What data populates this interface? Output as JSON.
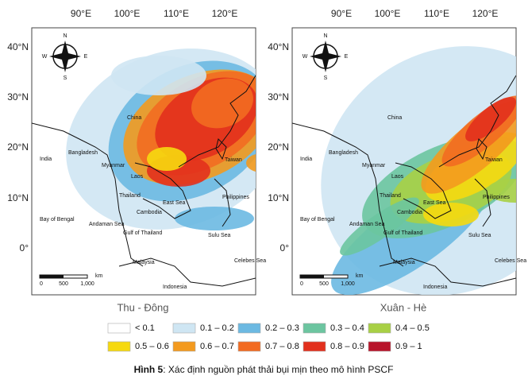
{
  "maps": [
    {
      "caption": "Thu - Đông",
      "lon_labels": [
        "90°E",
        "100°E",
        "110°E",
        "120°E"
      ],
      "lat_labels": [
        "40°N",
        "30°N",
        "20°N",
        "10°N",
        "0°"
      ],
      "compass": [
        "N",
        "S",
        "E",
        "W"
      ],
      "scale": [
        "0",
        "500",
        "1,000",
        "km"
      ],
      "places": [
        "China",
        "India",
        "Bangladesh",
        "Myanmar",
        "Laos",
        "Thailand",
        "Cambodia",
        "Bay of Bengal",
        "Andaman Sea",
        "Gulf of Thailand",
        "East Sea",
        "Philippines",
        "Sulu Sea",
        "Celebes Sea",
        "Malaysia",
        "Indonesia",
        "Taiwan"
      ]
    },
    {
      "caption": "Xuân - Hè",
      "lon_labels": [
        "90°E",
        "100°E",
        "110°E",
        "120°E"
      ],
      "lat_labels": [
        "40°N",
        "30°N",
        "20°N",
        "10°N",
        "0°"
      ],
      "compass": [
        "N",
        "S",
        "E",
        "W"
      ],
      "scale": [
        "0",
        "500",
        "1,000",
        "km"
      ],
      "places": [
        "China",
        "India",
        "Bangladesh",
        "Myanmar",
        "Laos",
        "Thailand",
        "Cambodia",
        "Bay of Bengal",
        "Andaman Sea",
        "Gulf of Thailand",
        "East Sea",
        "Philippines",
        "Sulu Sea",
        "Celebes Sea",
        "Malaysia",
        "Indonesia",
        "Taiwan"
      ]
    }
  ],
  "legend": [
    {
      "label": "< 0.1",
      "color": "#ffffff"
    },
    {
      "label": "0.1 – 0.2",
      "color": "#cfe6f3"
    },
    {
      "label": "0.2 – 0.3",
      "color": "#6cb9e2"
    },
    {
      "label": "0.3 – 0.4",
      "color": "#6cc5a0"
    },
    {
      "label": "0.4 – 0.5",
      "color": "#a8d045"
    },
    {
      "label": "0.5 – 0.6",
      "color": "#f6d90f"
    },
    {
      "label": "0.6 – 0.7",
      "color": "#f39a1e"
    },
    {
      "label": "0.7 – 0.8",
      "color": "#f26b21"
    },
    {
      "label": "0.8 – 0.9",
      "color": "#e2301d"
    },
    {
      "label": "0.9 – 1",
      "color": "#b8142a"
    }
  ],
  "figure": {
    "label": "Hình 5",
    "text": ": Xác định nguồn phát thải bụi mịn theo mô hình PSCF"
  }
}
